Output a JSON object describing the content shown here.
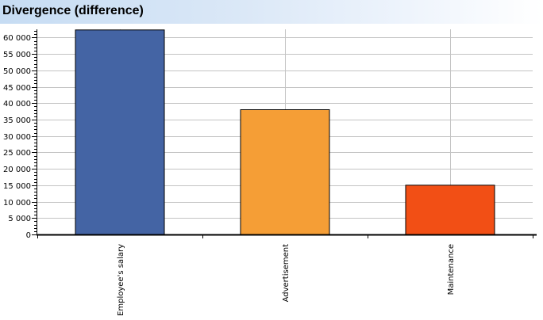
{
  "chart_data": {
    "type": "bar",
    "title": "Divergence (difference)",
    "categories": [
      "Employee's salary",
      "Advertisement",
      "Maintenance"
    ],
    "values": [
      62300,
      38000,
      15000
    ],
    "colors": [
      "#4464a4",
      "#f59e36",
      "#f24f15"
    ],
    "ylim": [
      0,
      62500
    ],
    "yticks": [
      0,
      5000,
      10000,
      15000,
      20000,
      25000,
      30000,
      35000,
      40000,
      45000,
      50000,
      55000,
      60000
    ],
    "ytick_labels": [
      "0",
      "5 000",
      "10 000",
      "15 000",
      "20 000",
      "25 000",
      "30 000",
      "35 000",
      "40 000",
      "45 000",
      "50 000",
      "55 000",
      "60 000"
    ],
    "grid": true
  }
}
